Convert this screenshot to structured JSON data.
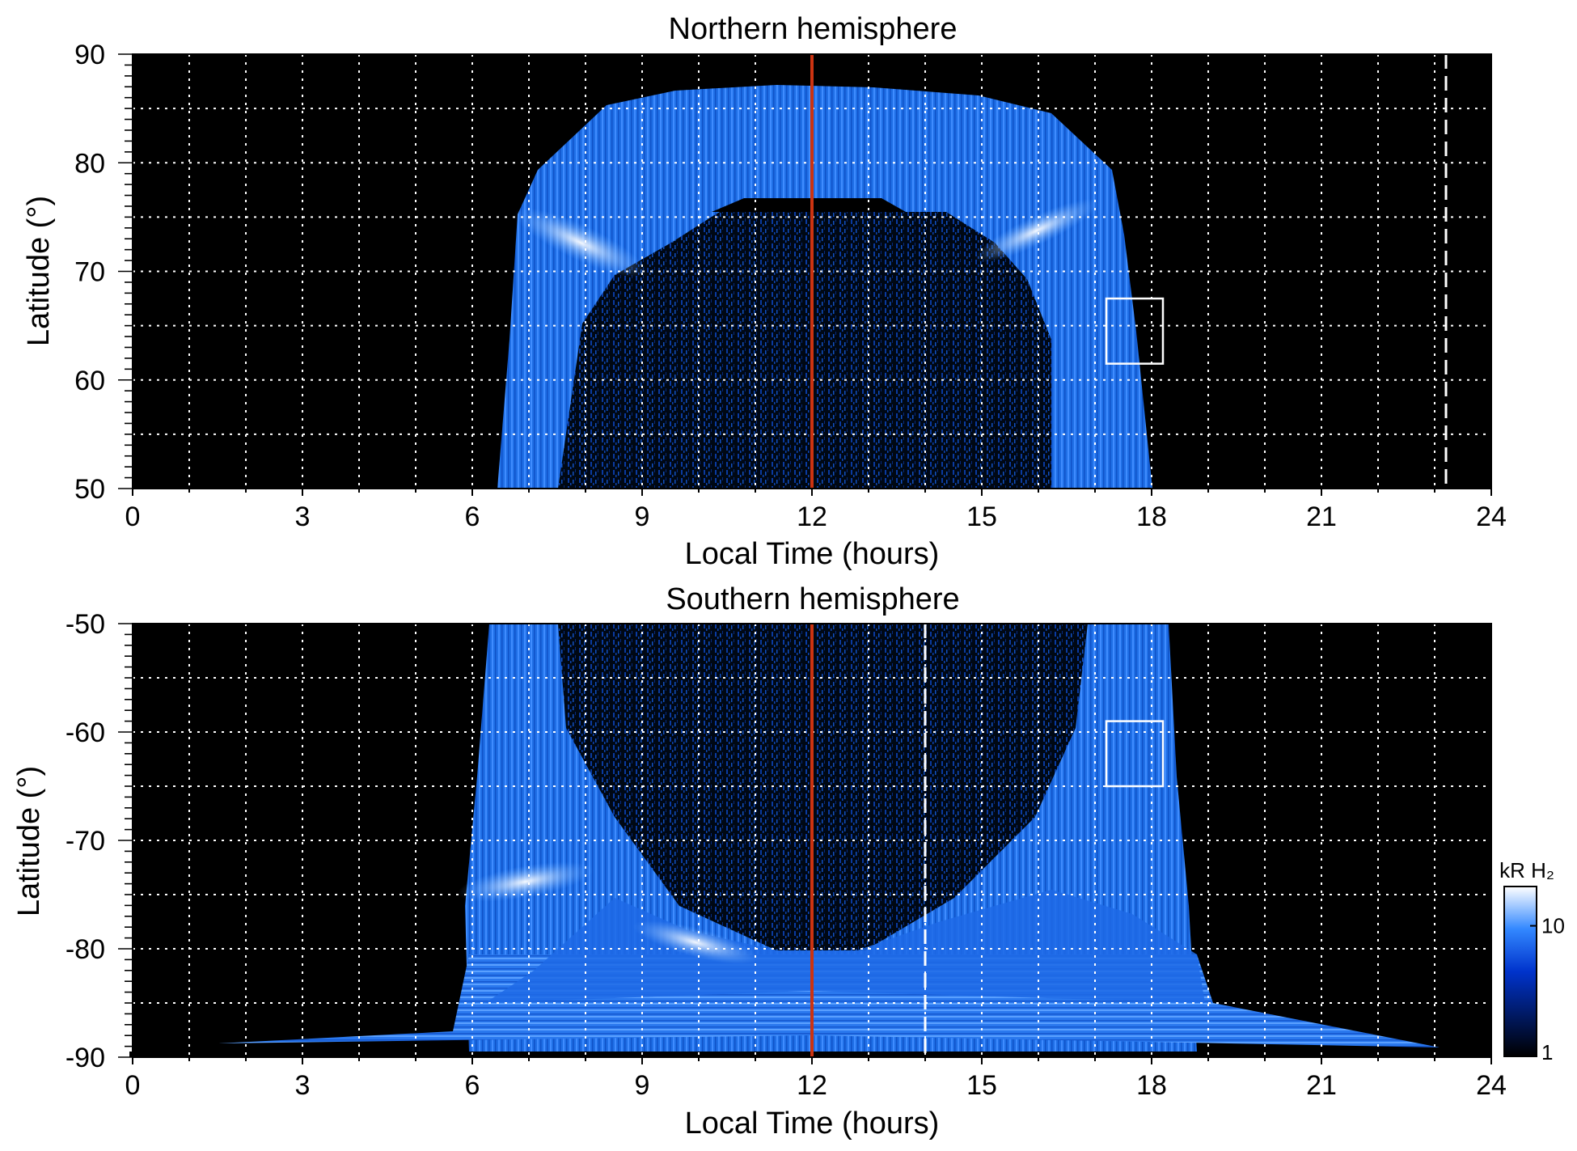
{
  "chart_data": [
    {
      "type": "heatmap",
      "title": "Northern hemisphere",
      "xlabel": "Local Time (hours)",
      "ylabel": "Latitude (°)",
      "xlim": [
        0,
        24
      ],
      "ylim": [
        50,
        90
      ],
      "xticks": [
        0,
        3,
        6,
        9,
        12,
        15,
        18,
        21,
        24
      ],
      "xtick_labels": [
        "0",
        "3",
        "6",
        "9",
        "12",
        "15",
        "18",
        "21",
        "24"
      ],
      "yticks": [
        50,
        60,
        70,
        80,
        90
      ],
      "ytick_labels": [
        "50",
        "60",
        "70",
        "80",
        "90"
      ],
      "grid_x": [
        1,
        2,
        3,
        4,
        5,
        6,
        7,
        8,
        9,
        10,
        11,
        13,
        14,
        15,
        16,
        17,
        18,
        19,
        20,
        21,
        22,
        23
      ],
      "grid_y": [
        55,
        60,
        65,
        70,
        75,
        80,
        85
      ],
      "grid": true,
      "noon_line": 12,
      "dashed_marker": 23.2,
      "box": {
        "x": [
          17.2,
          18.2
        ],
        "y": [
          61.5,
          67.5
        ]
      },
      "bright_arc_lat": [
        75,
        75
      ],
      "emission_region": {
        "x": [
          6.5,
          18
        ],
        "y": [
          50,
          88
        ]
      }
    },
    {
      "type": "heatmap",
      "title": "Southern hemisphere",
      "xlabel": "Local Time (hours)",
      "ylabel": "Latitude (°)",
      "xlim": [
        0,
        24
      ],
      "ylim": [
        -90,
        -50
      ],
      "xticks": [
        0,
        3,
        6,
        9,
        12,
        15,
        18,
        21,
        24
      ],
      "xtick_labels": [
        "0",
        "3",
        "6",
        "9",
        "12",
        "15",
        "18",
        "21",
        "24"
      ],
      "yticks": [
        -90,
        -80,
        -70,
        -60,
        -50
      ],
      "ytick_labels": [
        "-90",
        "-80",
        "-70",
        "-60",
        "-50"
      ],
      "grid_x": [
        1,
        2,
        3,
        4,
        5,
        6,
        7,
        8,
        9,
        10,
        11,
        13,
        14,
        15,
        16,
        17,
        18,
        19,
        20,
        21,
        22,
        23
      ],
      "grid_y": [
        -55,
        -60,
        -65,
        -70,
        -75,
        -80,
        -85
      ],
      "grid": true,
      "noon_line": 12,
      "dashed_marker": 14,
      "box": {
        "x": [
          17.2,
          18.2
        ],
        "y": [
          -65,
          -59
        ]
      },
      "emission_region": {
        "x": [
          5.5,
          19
        ],
        "y": [
          -88,
          -50
        ]
      }
    }
  ],
  "colorbar": {
    "label": "kR H₂",
    "scale": "log",
    "range": [
      1,
      20
    ],
    "ticks": [
      1,
      10
    ],
    "tick_labels": [
      "1",
      "10"
    ],
    "colors": [
      "#000000",
      "#001a66",
      "#0033cc",
      "#1a66ff",
      "#66aaff",
      "#ffffff"
    ]
  },
  "colors": {
    "background": "#000000",
    "noon_line": "#cc3311",
    "grid": "#ffffff",
    "box": "#ffffff"
  }
}
